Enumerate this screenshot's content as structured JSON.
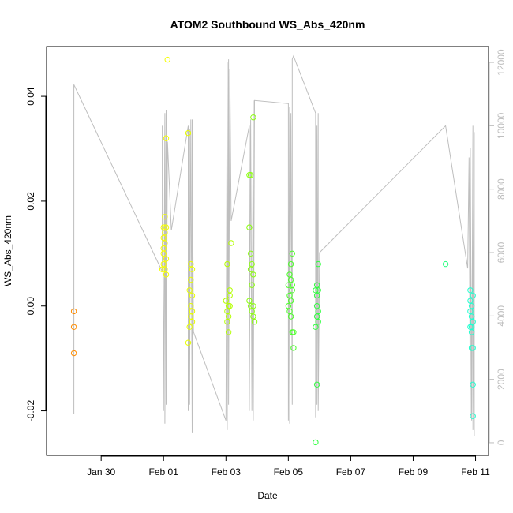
{
  "chart_data": {
    "type": "scatter",
    "title": "ATOM2 Southbound WS_Abs_420nm",
    "xlabel": "Date",
    "ylabel": "WS_Abs_420nm",
    "y2label": "",
    "xlim": [
      "2017-01-28T06:00",
      "2017-02-11T10:00"
    ],
    "ylim": [
      -0.0285,
      0.0495
    ],
    "y2lim": [
      -400,
      12500
    ],
    "x_ticks": [
      {
        "label": "Jan 30",
        "date": "2017-01-30"
      },
      {
        "label": "Feb 01",
        "date": "2017-02-01"
      },
      {
        "label": "Feb 03",
        "date": "2017-02-03"
      },
      {
        "label": "Feb 05",
        "date": "2017-02-05"
      },
      {
        "label": "Feb 07",
        "date": "2017-02-07"
      },
      {
        "label": "Feb 09",
        "date": "2017-02-09"
      },
      {
        "label": "Feb 11",
        "date": "2017-02-11"
      }
    ],
    "y_ticks": [
      {
        "label": "-0.02",
        "value": -0.02
      },
      {
        "label": "0.00",
        "value": 0.0
      },
      {
        "label": "0.02",
        "value": 0.02
      },
      {
        "label": "0.04",
        "value": 0.04
      }
    ],
    "y2_ticks": [
      {
        "label": "0",
        "value": 0
      },
      {
        "label": "2000",
        "value": 2000
      },
      {
        "label": "4000",
        "value": 4000
      },
      {
        "label": "6000",
        "value": 6000
      },
      {
        "label": "8000",
        "value": 8000
      },
      {
        "label": "10000",
        "value": 10000
      },
      {
        "label": "12000",
        "value": 12000
      }
    ],
    "grid": false,
    "legend": "none",
    "colors": {
      "line": "#bebebe",
      "axis": "#000000",
      "point_palette": [
        "#ff8c00",
        "#f5ff00",
        "#c8ff00",
        "#86ff1a",
        "#4cff2a",
        "#2aff66",
        "#22ffd0"
      ]
    },
    "scatter_series": [
      {
        "color": "#ff8c00",
        "points": [
          [
            "2017-01-29T03:00",
            -0.001
          ],
          [
            "2017-01-29T03:00",
            -0.004
          ],
          [
            "2017-01-29T03:00",
            -0.009
          ]
        ]
      },
      {
        "color": "#f5ff00",
        "points": [
          [
            "2017-02-01T03:00",
            0.047
          ],
          [
            "2017-02-01T02:00",
            0.032
          ],
          [
            "2017-02-01T01:00",
            0.017
          ],
          [
            "2017-02-01T00:00",
            0.015
          ],
          [
            "2017-02-01T02:00",
            0.015
          ],
          [
            "2017-02-01T00:00",
            0.013
          ],
          [
            "2017-02-01T01:00",
            0.012
          ],
          [
            "2017-02-01T00:00",
            0.01
          ],
          [
            "2017-02-01T02:00",
            0.009
          ],
          [
            "2017-02-01T00:00",
            0.008
          ],
          [
            "2017-02-01T01:00",
            0.007
          ],
          [
            "2017-02-01T02:00",
            0.006
          ],
          [
            "2017-01-31T23:00",
            0.007
          ],
          [
            "2017-02-01T01:00",
            0.014
          ],
          [
            "2017-02-01T00:00",
            0.011
          ]
        ]
      },
      {
        "color": "#e8ff00",
        "points": [
          [
            "2017-02-01T19:00",
            0.033
          ],
          [
            "2017-02-01T21:00",
            0.008
          ],
          [
            "2017-02-01T22:00",
            0.007
          ],
          [
            "2017-02-01T21:00",
            0.005
          ],
          [
            "2017-02-01T20:00",
            0.003
          ],
          [
            "2017-02-01T22:00",
            0.002
          ],
          [
            "2017-02-01T21:00",
            0.0
          ],
          [
            "2017-02-01T22:00",
            -0.001
          ],
          [
            "2017-02-01T21:00",
            -0.002
          ],
          [
            "2017-02-01T22:00",
            -0.003
          ],
          [
            "2017-02-01T20:00",
            -0.004
          ],
          [
            "2017-02-01T19:00",
            -0.007
          ]
        ]
      },
      {
        "color": "#b4ff00",
        "points": [
          [
            "2017-02-03T04:00",
            0.012
          ],
          [
            "2017-02-03T01:00",
            0.008
          ],
          [
            "2017-02-03T03:00",
            0.003
          ],
          [
            "2017-02-03T03:00",
            0.002
          ],
          [
            "2017-02-03T00:00",
            0.001
          ],
          [
            "2017-02-03T02:00",
            0.0
          ],
          [
            "2017-02-03T01:00",
            -0.001
          ],
          [
            "2017-02-03T02:00",
            -0.002
          ],
          [
            "2017-02-03T01:00",
            -0.003
          ],
          [
            "2017-02-03T02:00",
            -0.005
          ],
          [
            "2017-02-03T03:00",
            0.0
          ]
        ]
      },
      {
        "color": "#8cff10",
        "points": [
          [
            "2017-02-03T21:00",
            0.036
          ],
          [
            "2017-02-03T18:00",
            0.025
          ],
          [
            "2017-02-03T19:00",
            0.025
          ],
          [
            "2017-02-03T18:00",
            0.015
          ],
          [
            "2017-02-03T19:00",
            0.01
          ],
          [
            "2017-02-03T20:00",
            0.008
          ],
          [
            "2017-02-03T21:00",
            0.006
          ],
          [
            "2017-02-03T19:00",
            0.007
          ],
          [
            "2017-02-03T20:00",
            0.004
          ],
          [
            "2017-02-03T18:00",
            0.001
          ],
          [
            "2017-02-03T21:00",
            0.0
          ],
          [
            "2017-02-03T20:00",
            -0.001
          ],
          [
            "2017-02-03T21:00",
            -0.002
          ],
          [
            "2017-02-03T22:00",
            -0.003
          ],
          [
            "2017-02-03T19:00",
            0.0
          ]
        ]
      },
      {
        "color": "#4cff2a",
        "points": [
          [
            "2017-02-05T03:00",
            0.01
          ],
          [
            "2017-02-05T02:00",
            0.008
          ],
          [
            "2017-02-05T01:00",
            0.006
          ],
          [
            "2017-02-05T02:00",
            0.005
          ],
          [
            "2017-02-05T00:00",
            0.004
          ],
          [
            "2017-02-05T03:00",
            0.003
          ],
          [
            "2017-02-05T01:00",
            0.002
          ],
          [
            "2017-02-05T02:00",
            0.001
          ],
          [
            "2017-02-05T00:00",
            0.0
          ],
          [
            "2017-02-05T01:00",
            -0.001
          ],
          [
            "2017-02-05T02:00",
            -0.002
          ],
          [
            "2017-02-05T03:00",
            -0.005
          ],
          [
            "2017-02-05T04:00",
            -0.005
          ],
          [
            "2017-02-05T04:00",
            -0.008
          ],
          [
            "2017-02-05T03:00",
            0.004
          ]
        ]
      },
      {
        "color": "#30ff40",
        "points": [
          [
            "2017-02-05T23:00",
            0.008
          ],
          [
            "2017-02-05T22:00",
            0.004
          ],
          [
            "2017-02-05T23:00",
            0.003
          ],
          [
            "2017-02-05T21:00",
            0.003
          ],
          [
            "2017-02-05T22:00",
            0.002
          ],
          [
            "2017-02-05T22:00",
            0.0
          ],
          [
            "2017-02-05T23:00",
            -0.001
          ],
          [
            "2017-02-05T22:00",
            -0.002
          ],
          [
            "2017-02-05T23:00",
            -0.003
          ],
          [
            "2017-02-05T21:00",
            -0.004
          ],
          [
            "2017-02-05T22:00",
            -0.015
          ],
          [
            "2017-02-05T21:00",
            -0.026
          ]
        ]
      },
      {
        "color": "#2aff80",
        "points": [
          [
            "2017-02-10T01:00",
            0.008
          ]
        ]
      },
      {
        "color": "#22ffd0",
        "points": [
          [
            "2017-02-10T20:00",
            0.003
          ],
          [
            "2017-02-10T22:00",
            0.002
          ],
          [
            "2017-02-10T20:00",
            0.001
          ],
          [
            "2017-02-10T21:00",
            0.0
          ],
          [
            "2017-02-10T20:00",
            -0.001
          ],
          [
            "2017-02-10T21:00",
            -0.002
          ],
          [
            "2017-02-10T22:00",
            -0.003
          ],
          [
            "2017-02-10T21:00",
            -0.004
          ],
          [
            "2017-02-10T20:00",
            -0.004
          ],
          [
            "2017-02-10T21:00",
            -0.005
          ],
          [
            "2017-02-10T21:00",
            -0.008
          ],
          [
            "2017-02-10T22:00",
            -0.008
          ],
          [
            "2017-02-10T22:00",
            -0.015
          ],
          [
            "2017-02-10T22:00",
            -0.021
          ],
          [
            "2017-02-10T21:00",
            -0.002
          ]
        ]
      }
    ],
    "line_series": {
      "axis": "right",
      "color": "#bebebe",
      "points": [
        [
          "2017-01-29T03:00",
          900
        ],
        [
          "2017-01-29T03:00",
          11300
        ],
        [
          "2017-01-31T23:00",
          5400
        ],
        [
          "2017-01-31T23:00",
          10000
        ],
        [
          "2017-02-01T00:00",
          1000
        ],
        [
          "2017-02-01T01:00",
          10400
        ],
        [
          "2017-02-01T01:00",
          600
        ],
        [
          "2017-02-01T02:00",
          10500
        ],
        [
          "2017-02-01T02:00",
          1200
        ],
        [
          "2017-02-01T03:00",
          9500
        ],
        [
          "2017-02-01T06:00",
          6700
        ],
        [
          "2017-02-01T19:00",
          10000
        ],
        [
          "2017-02-01T19:00",
          1000
        ],
        [
          "2017-02-01T20:00",
          9900
        ],
        [
          "2017-02-01T20:00",
          1200
        ],
        [
          "2017-02-01T21:00",
          10200
        ],
        [
          "2017-02-01T22:00",
          300
        ],
        [
          "2017-02-01T22:00",
          10200
        ],
        [
          "2017-02-01T23:00",
          3500
        ],
        [
          "2017-02-03T00:00",
          700
        ],
        [
          "2017-02-03T01:00",
          12000
        ],
        [
          "2017-02-03T01:00",
          400
        ],
        [
          "2017-02-03T02:00",
          12100
        ],
        [
          "2017-02-03T02:00",
          1200
        ],
        [
          "2017-02-03T03:00",
          11800
        ],
        [
          "2017-02-03T04:00",
          7000
        ],
        [
          "2017-02-03T18:00",
          10000
        ],
        [
          "2017-02-03T18:00",
          1000
        ],
        [
          "2017-02-03T19:00",
          10200
        ],
        [
          "2017-02-03T20:00",
          1000
        ],
        [
          "2017-02-03T21:00",
          10800
        ],
        [
          "2017-02-03T21:00",
          700
        ],
        [
          "2017-02-03T22:00",
          10800
        ],
        [
          "2017-02-05T00:00",
          10700
        ],
        [
          "2017-02-05T00:00",
          700
        ],
        [
          "2017-02-05T01:00",
          10600
        ],
        [
          "2017-02-05T01:00",
          600
        ],
        [
          "2017-02-05T02:00",
          10400
        ],
        [
          "2017-02-05T03:00",
          1200
        ],
        [
          "2017-02-05T03:00",
          12100
        ],
        [
          "2017-02-05T04:00",
          12200
        ],
        [
          "2017-02-05T21:00",
          10400
        ],
        [
          "2017-02-05T21:00",
          800
        ],
        [
          "2017-02-05T22:00",
          10000
        ],
        [
          "2017-02-05T22:00",
          1200
        ],
        [
          "2017-02-05T23:00",
          10400
        ],
        [
          "2017-02-05T23:00",
          1000
        ],
        [
          "2017-02-06T00:00",
          6000
        ],
        [
          "2017-02-10T01:00",
          10000
        ],
        [
          "2017-02-10T18:00",
          5500
        ],
        [
          "2017-02-10T19:00",
          9000
        ],
        [
          "2017-02-10T20:00",
          800
        ],
        [
          "2017-02-10T20:00",
          9300
        ],
        [
          "2017-02-10T21:00",
          700
        ],
        [
          "2017-02-10T22:00",
          10000
        ],
        [
          "2017-02-10T22:00",
          400
        ],
        [
          "2017-02-10T23:00",
          9800
        ],
        [
          "2017-02-10T23:00",
          200
        ]
      ]
    }
  }
}
